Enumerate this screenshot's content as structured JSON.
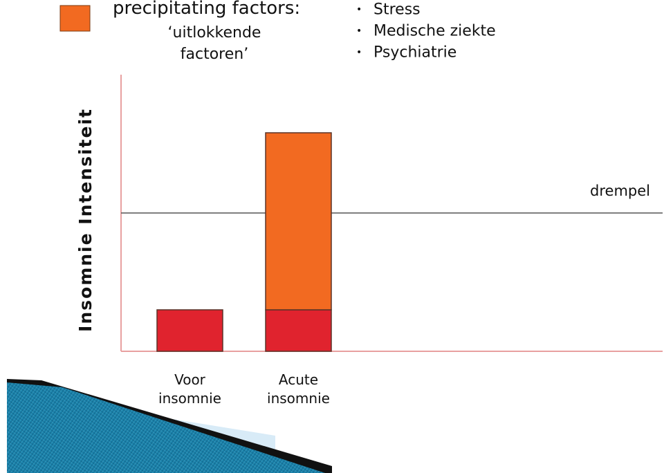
{
  "chart_data": {
    "type": "bar",
    "stacked": true,
    "title": "precipitating factors:",
    "subtitle": "‘uitlokkende factoren’",
    "ylabel": "Insomnie Intensiteit",
    "categories": [
      "Voor insomnie",
      "Acute insomnie"
    ],
    "series": [
      {
        "color": "#e0232e",
        "values": [
          15,
          15
        ]
      },
      {
        "name": "precipitating factors:",
        "color": "#f26a21",
        "values": [
          null,
          64
        ]
      }
    ],
    "ylim": [
      0,
      100
    ],
    "threshold": {
      "value": 50,
      "label": "drempel"
    }
  },
  "bullets": [
    "Stress",
    "Medische ziekte",
    "Psychiatrie"
  ]
}
